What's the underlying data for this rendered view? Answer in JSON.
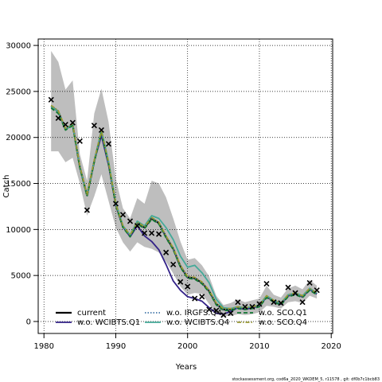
{
  "chart_data": {
    "type": "line",
    "xlabel": "Years",
    "ylabel": "Catch",
    "xlim": [
      1979.2,
      2020.2
    ],
    "ylim": [
      -1300,
      30700
    ],
    "x_ticks": [
      1980,
      1990,
      2000,
      2010,
      2020
    ],
    "y_ticks": [
      0,
      5000,
      10000,
      15000,
      20000,
      25000,
      30000
    ],
    "grid": true,
    "legend_position": "bottom-left",
    "footer": "stockassessment.org, cod6a_2020_WKDEM_5, r11578 , git: df0b7c1bcb83",
    "years": [
      1981,
      1982,
      1983,
      1984,
      1985,
      1986,
      1987,
      1988,
      1989,
      1990,
      1991,
      1992,
      1993,
      1994,
      1995,
      1996,
      1997,
      1998,
      1999,
      2000,
      2001,
      2002,
      2003,
      2004,
      2005,
      2006,
      2007,
      2008,
      2009,
      2010,
      2011,
      2012,
      2013,
      2014,
      2015,
      2016,
      2017,
      2018
    ],
    "observed": {
      "name": "",
      "marker": "x",
      "values": [
        24100,
        22100,
        21400,
        21600,
        19600,
        12100,
        21300,
        20800,
        19300,
        12800,
        11600,
        10900,
        10400,
        9600,
        9600,
        9500,
        7500,
        6200,
        4300,
        3800,
        2500,
        2700,
        1300,
        1200,
        700,
        900,
        2100,
        1600,
        1600,
        1900,
        4100,
        2100,
        2000,
        3700,
        3100,
        2100,
        4200,
        3400
      ]
    },
    "confidence_band": {
      "color": "#bebebe",
      "lower": [
        18500,
        18500,
        17300,
        17800,
        15000,
        11500,
        13600,
        16000,
        13100,
        10200,
        8600,
        7600,
        8600,
        8100,
        7900,
        7500,
        6500,
        5200,
        3800,
        2900,
        3100,
        3000,
        1900,
        800,
        600,
        600,
        800,
        700,
        800,
        1000,
        1700,
        1600,
        1400,
        2100,
        2200,
        2000,
        2800,
        2500
      ],
      "upper": [
        29400,
        28200,
        25200,
        26200,
        18200,
        15300,
        22600,
        25300,
        21700,
        15500,
        12300,
        11200,
        13400,
        12800,
        15300,
        15000,
        13500,
        11200,
        8700,
        6700,
        6900,
        6100,
        4900,
        2800,
        1800,
        2000,
        2400,
        2100,
        2300,
        2500,
        3900,
        2900,
        2600,
        3600,
        3900,
        3500,
        4500,
        3900
      ]
    },
    "series": [
      {
        "name": "current",
        "color": "#000000",
        "style": "solid",
        "values": [
          23400,
          22800,
          20900,
          21400,
          16800,
          13700,
          17400,
          20600,
          17200,
          12700,
          10300,
          9300,
          10700,
          10200,
          11200,
          10700,
          9200,
          7900,
          6000,
          4800,
          4700,
          4200,
          3300,
          1900,
          1300,
          1300,
          1500,
          1400,
          1500,
          1700,
          2700,
          2200,
          1900,
          2800,
          3000,
          2700,
          3500,
          3000
        ]
      },
      {
        "name": "w.o. WCIBTS.Q1",
        "color": "#332288",
        "style": "solid",
        "values": [
          23400,
          22800,
          20900,
          21400,
          16800,
          13700,
          17400,
          20200,
          17000,
          12700,
          10300,
          9200,
          10400,
          9300,
          8700,
          7800,
          6200,
          4400,
          3400,
          2700,
          2500,
          2200,
          1500,
          900,
          800,
          1100,
          1500,
          1300,
          1500,
          1700,
          2700,
          2200,
          1900,
          2800,
          3000,
          2700,
          3500,
          3000
        ]
      },
      {
        "name": "w.o. IRGFS.Q4",
        "color": "#4477AA",
        "style": "dotted",
        "values": [
          23400,
          22800,
          20900,
          21400,
          16800,
          13700,
          17400,
          20600,
          17200,
          12700,
          10300,
          9300,
          10700,
          10200,
          11200,
          10700,
          9200,
          7900,
          6000,
          4800,
          4700,
          4200,
          3300,
          1900,
          1300,
          1300,
          1500,
          1400,
          1500,
          1700,
          2700,
          2200,
          1900,
          2800,
          3000,
          2700,
          3500,
          3000
        ]
      },
      {
        "name": "w.o. WCIBTS.Q4",
        "color": "#44AA99",
        "style": "solid",
        "values": [
          23400,
          22800,
          20900,
          21400,
          16800,
          13700,
          17400,
          20800,
          17400,
          12900,
          10400,
          9400,
          10900,
          10400,
          11500,
          11200,
          10200,
          8900,
          7100,
          5900,
          6100,
          5300,
          4200,
          2400,
          1500,
          1400,
          1600,
          1500,
          1600,
          1800,
          2800,
          2300,
          2000,
          2900,
          3100,
          2800,
          3600,
          3100
        ]
      },
      {
        "name": "w.o. SCO.Q1",
        "color": "#117733",
        "style": "dashed",
        "values": [
          23200,
          22600,
          20800,
          21300,
          16700,
          13600,
          17300,
          20500,
          17100,
          12600,
          10200,
          9200,
          10600,
          10100,
          11100,
          10600,
          9100,
          7800,
          5900,
          4700,
          4600,
          4100,
          3200,
          1800,
          1200,
          1200,
          1400,
          1300,
          1400,
          1600,
          2600,
          2100,
          1800,
          2700,
          2900,
          2600,
          3400,
          2900
        ]
      },
      {
        "name": "w.o. SCO.Q4",
        "color": "#999933",
        "style": "dashdot",
        "values": [
          23500,
          22900,
          21000,
          21500,
          16900,
          13800,
          17500,
          20700,
          17300,
          12800,
          10400,
          9400,
          10800,
          10300,
          11300,
          10800,
          9300,
          8000,
          6100,
          4900,
          4800,
          4300,
          3400,
          2000,
          1400,
          1400,
          1600,
          1500,
          1600,
          1800,
          2800,
          2300,
          2000,
          2900,
          3100,
          2800,
          3600,
          3100
        ]
      }
    ]
  }
}
